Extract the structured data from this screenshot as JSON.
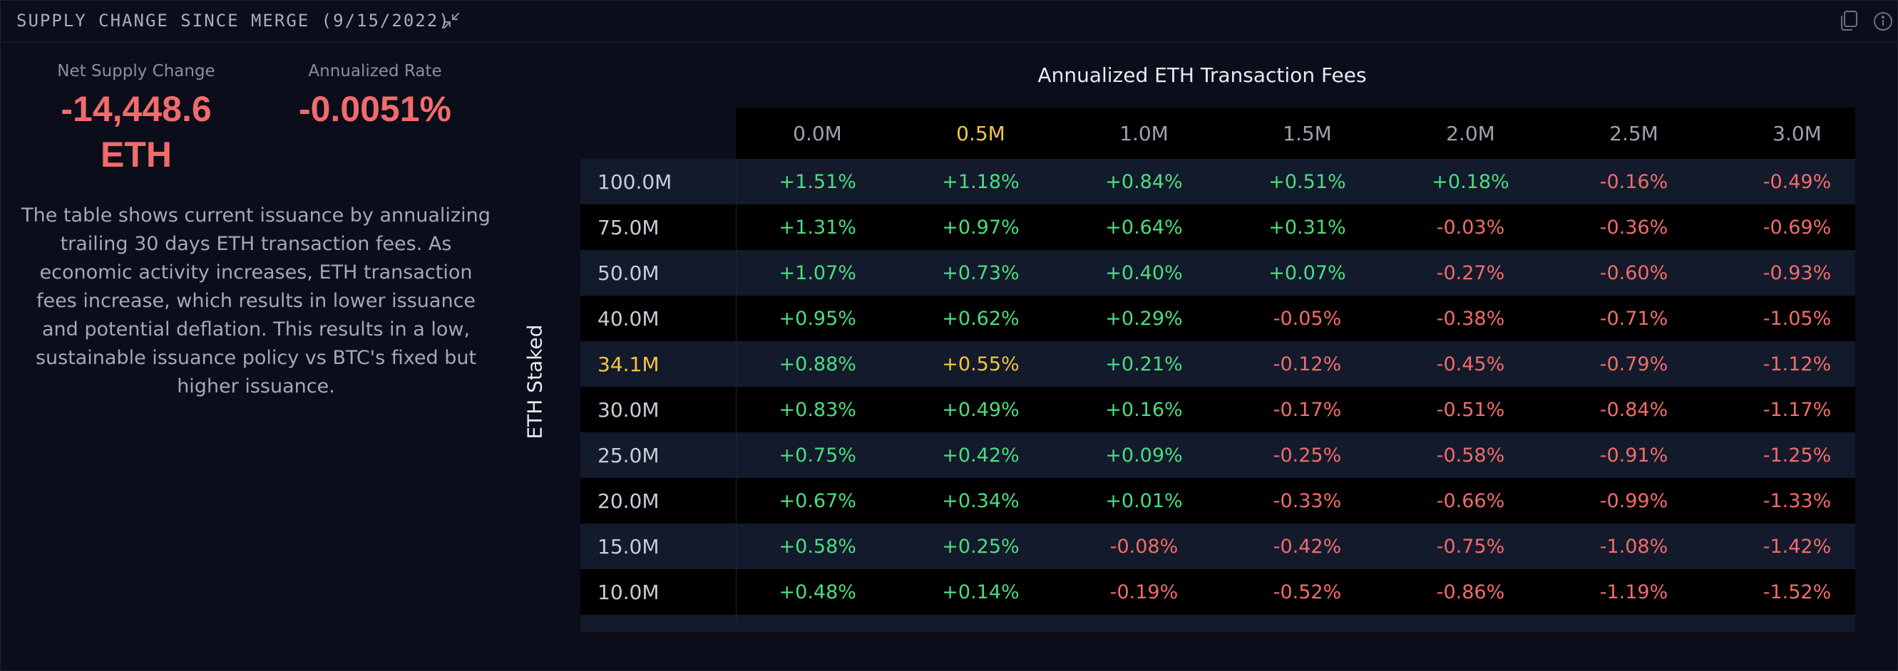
{
  "header": {
    "title": "SUPPLY CHANGE SINCE MERGE (9/15/2022)"
  },
  "stats": {
    "net_supply_label": "Net Supply Change",
    "net_supply_value": "-14,448.6 ETH",
    "rate_label": "Annualized Rate",
    "rate_value": "-0.0051%"
  },
  "description": "The table shows current issuance by annualizing trailing 30 days ETH transaction fees. As economic activity increases, ETH transaction fees increase, which results in lower issuance and potential deflation. This results in a low, sustainable issuance policy vs BTC's fixed but higher issuance.",
  "colors": {
    "positive": "#4ade80",
    "negative": "#f26b6b",
    "highlight": "#f5c542"
  },
  "chart_data": {
    "type": "table",
    "title": "",
    "xlabel": "Annualized ETH Transaction Fees",
    "ylabel": "ETH Staked",
    "columns": [
      "0.0M",
      "0.5M",
      "1.0M",
      "1.5M",
      "2.0M",
      "2.5M",
      "3.0M"
    ],
    "highlight_column": "0.5M",
    "highlight_row": "34.1M",
    "rows": [
      {
        "label": "100.0M",
        "values": [
          "+1.51%",
          "+1.18%",
          "+0.84%",
          "+0.51%",
          "+0.18%",
          "-0.16%",
          "-0.49%"
        ]
      },
      {
        "label": "75.0M",
        "values": [
          "+1.31%",
          "+0.97%",
          "+0.64%",
          "+0.31%",
          "-0.03%",
          "-0.36%",
          "-0.69%"
        ]
      },
      {
        "label": "50.0M",
        "values": [
          "+1.07%",
          "+0.73%",
          "+0.40%",
          "+0.07%",
          "-0.27%",
          "-0.60%",
          "-0.93%"
        ]
      },
      {
        "label": "40.0M",
        "values": [
          "+0.95%",
          "+0.62%",
          "+0.29%",
          "-0.05%",
          "-0.38%",
          "-0.71%",
          "-1.05%"
        ]
      },
      {
        "label": "34.1M",
        "values": [
          "+0.88%",
          "+0.55%",
          "+0.21%",
          "-0.12%",
          "-0.45%",
          "-0.79%",
          "-1.12%"
        ]
      },
      {
        "label": "30.0M",
        "values": [
          "+0.83%",
          "+0.49%",
          "+0.16%",
          "-0.17%",
          "-0.51%",
          "-0.84%",
          "-1.17%"
        ]
      },
      {
        "label": "25.0M",
        "values": [
          "+0.75%",
          "+0.42%",
          "+0.09%",
          "-0.25%",
          "-0.58%",
          "-0.91%",
          "-1.25%"
        ]
      },
      {
        "label": "20.0M",
        "values": [
          "+0.67%",
          "+0.34%",
          "+0.01%",
          "-0.33%",
          "-0.66%",
          "-0.99%",
          "-1.33%"
        ]
      },
      {
        "label": "15.0M",
        "values": [
          "+0.58%",
          "+0.25%",
          "-0.08%",
          "-0.42%",
          "-0.75%",
          "-1.08%",
          "-1.42%"
        ]
      },
      {
        "label": "10.0M",
        "values": [
          "+0.48%",
          "+0.14%",
          "-0.19%",
          "-0.52%",
          "-0.86%",
          "-1.19%",
          "-1.52%"
        ]
      }
    ]
  },
  "icons": {
    "collapse": "collapse-arrows-icon",
    "copy": "copy-icon",
    "info": "info-icon"
  }
}
